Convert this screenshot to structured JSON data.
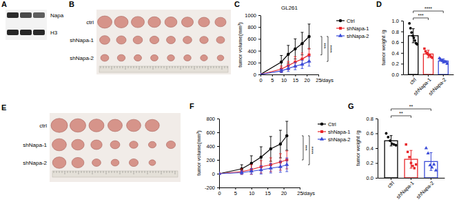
{
  "western_blot": {
    "panel": "A",
    "bands": [
      "Napa",
      "H3"
    ]
  },
  "tumor_photos": [
    {
      "panel": "B",
      "rows": [
        "ctrl",
        "shNapa-1",
        "shNapa-2"
      ]
    },
    {
      "panel": "E",
      "rows": [
        "ctrl",
        "shNapa-1",
        "shNapa-2"
      ]
    }
  ],
  "chart_data": [
    {
      "panel": "C",
      "type": "line",
      "title": "GL261",
      "x_label": "/days",
      "y_label": "tumor volume(mm³)",
      "x": [
        0,
        9,
        12,
        15,
        18,
        21
      ],
      "xlim": [
        0,
        25
      ],
      "xticks": [
        0,
        5,
        10,
        15,
        20,
        25
      ],
      "ylim": [
        0,
        1000
      ],
      "yticks": [
        0,
        200,
        400,
        600,
        800,
        1000
      ],
      "legend": "right",
      "series": [
        {
          "name": "Ctrl",
          "color": "#000000",
          "marker": "circle",
          "values": [
            0,
            210,
            340,
            430,
            520,
            640
          ],
          "errors": [
            0,
            110,
            150,
            170,
            190,
            210
          ]
        },
        {
          "name": "shNapa-1",
          "color": "#e8262a",
          "marker": "square",
          "values": [
            0,
            90,
            150,
            210,
            260,
            330
          ],
          "errors": [
            0,
            50,
            70,
            90,
            100,
            110
          ]
        },
        {
          "name": "shNapa-2",
          "color": "#3a4bd8",
          "marker": "triangle",
          "values": [
            0,
            60,
            100,
            140,
            170,
            220
          ],
          "errors": [
            0,
            30,
            50,
            60,
            70,
            80
          ]
        }
      ],
      "annotations": [
        "***",
        "****"
      ]
    },
    {
      "panel": "D",
      "type": "bar",
      "y_label": "tumor weight /g",
      "categories": [
        "ctrl",
        "shNapa-1",
        "shNapa-2"
      ],
      "values": [
        0.72,
        0.38,
        0.25
      ],
      "errors": [
        0.13,
        0.07,
        0.04
      ],
      "points": [
        [
          0.95,
          0.86,
          0.78,
          0.72,
          0.68,
          0.63,
          0.58,
          0.56
        ],
        [
          0.48,
          0.43,
          0.4,
          0.38,
          0.36,
          0.35,
          0.33,
          0.31
        ],
        [
          0.3,
          0.28,
          0.26,
          0.25,
          0.24,
          0.24,
          0.23,
          0.2
        ]
      ],
      "colors": [
        "#000000",
        "#e8262a",
        "#3a4bd8"
      ],
      "ylim": [
        0,
        1
      ],
      "yticks": [
        {
          "value": 0,
          "label": "0.0"
        },
        0.2,
        0.4,
        0.6,
        0.8,
        {
          "value": 1,
          "label": "1.0"
        }
      ],
      "annotations": [
        "***",
        "****"
      ]
    },
    {
      "panel": "F",
      "type": "line",
      "x_label": "/days",
      "y_label": "tumor volume(mm³)",
      "x": [
        0,
        7,
        10,
        13,
        16,
        19,
        21
      ],
      "xlim": [
        0,
        25
      ],
      "xticks": [
        0,
        5,
        10,
        15,
        20,
        25
      ],
      "ylim": [
        -200,
        800
      ],
      "yticks": [
        -200,
        0,
        200,
        400,
        600,
        800
      ],
      "legend": "right",
      "series": [
        {
          "name": "Ctrl",
          "color": "#000000",
          "marker": "circle",
          "values": [
            0,
            70,
            150,
            240,
            360,
            430,
            550
          ],
          "errors": [
            0,
            60,
            110,
            150,
            180,
            200,
            210
          ]
        },
        {
          "name": "shNapa-1",
          "color": "#e8262a",
          "marker": "square",
          "values": [
            0,
            30,
            60,
            100,
            130,
            170,
            200
          ],
          "errors": [
            0,
            40,
            70,
            90,
            100,
            120,
            130
          ]
        },
        {
          "name": "shNapa-2",
          "color": "#3a4bd8",
          "marker": "triangle",
          "values": [
            0,
            15,
            35,
            55,
            80,
            100,
            130
          ],
          "errors": [
            0,
            25,
            40,
            60,
            70,
            80,
            100
          ]
        }
      ],
      "annotations": [
        "***",
        "****"
      ]
    },
    {
      "panel": "G",
      "type": "bar",
      "y_label": "tumor weight /g",
      "categories": [
        "ctrl",
        "shNapa-1",
        "shNapa-2"
      ],
      "values": [
        0.5,
        0.25,
        0.22
      ],
      "errors": [
        0.07,
        0.12,
        0.12
      ],
      "points": [
        [
          0.6,
          0.55,
          0.5,
          0.46,
          0.45,
          0.44
        ],
        [
          0.45,
          0.35,
          0.28,
          0.2,
          0.16,
          0.13,
          0.18
        ],
        [
          0.4,
          0.33,
          0.17,
          0.14,
          0.18,
          0.1
        ]
      ],
      "colors": [
        "#000000",
        "#e8262a",
        "#3a4bd8"
      ],
      "ylim": [
        0,
        0.8
      ],
      "yticks": [
        {
          "value": 0,
          "label": "0.0"
        },
        0.2,
        0.4,
        0.6,
        0.8
      ],
      "annotations": [
        "**",
        "**"
      ]
    }
  ]
}
